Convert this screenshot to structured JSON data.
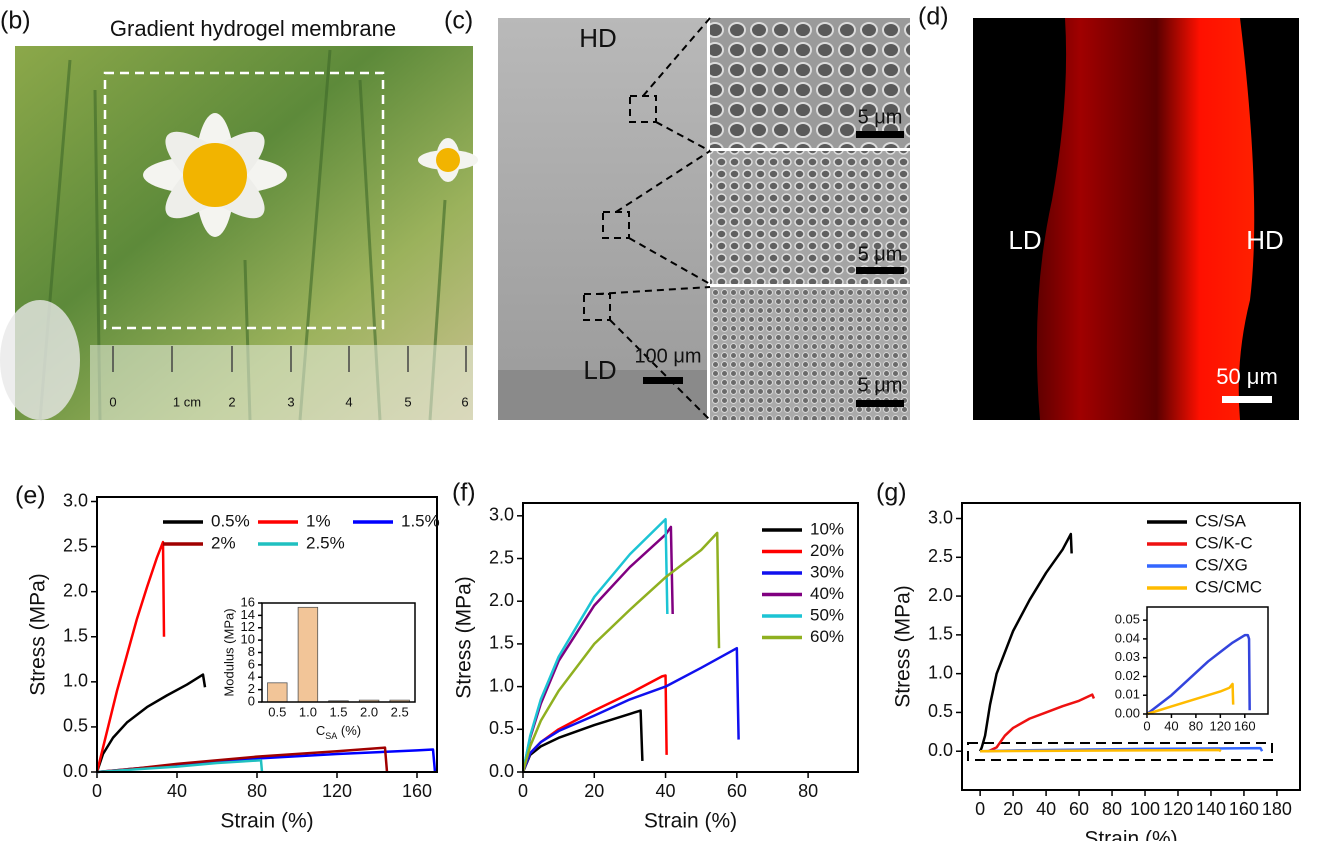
{
  "panels": [
    {
      "label": "(b)",
      "title": "Gradient hydrogel membrane",
      "ruler": [
        "0",
        "1 cm",
        "2",
        "3",
        "4",
        "5",
        "6"
      ]
    },
    {
      "label": "(c)",
      "texts": [
        "HD",
        "LD",
        "100 μm",
        "5 μm",
        "5 μm",
        "5 μm"
      ]
    },
    {
      "label": "(d)",
      "texts": [
        "LD",
        "HD",
        "50 μm"
      ]
    }
  ],
  "chart_data": [
    {
      "type": "line",
      "label": "(e)",
      "xlabel": "Strain (%)",
      "ylabel": "Stress (MPa)",
      "xlim": [
        0,
        170
      ],
      "xticks": [
        0,
        40,
        80,
        120,
        160
      ],
      "ylim": [
        0,
        3.05
      ],
      "yticks": [
        {
          "value": 0,
          "label": "0.0"
        },
        0.5,
        {
          "value": 1,
          "label": "1.0"
        },
        1.5,
        {
          "value": 2,
          "label": "2.0"
        },
        2.5,
        {
          "value": 3,
          "label": "3.0"
        }
      ],
      "legend": "top",
      "series": [
        {
          "name": "0.5%",
          "color": "#000000",
          "x": [
            0,
            3,
            8,
            15,
            25,
            35,
            45,
            53,
            54
          ],
          "values": [
            0,
            0.2,
            0.38,
            0.55,
            0.72,
            0.85,
            0.97,
            1.08,
            0.94
          ]
        },
        {
          "name": "1%",
          "color": "#ff0000",
          "x": [
            0,
            5,
            10,
            15,
            20,
            25,
            30,
            33,
            33.5
          ],
          "values": [
            0,
            0.45,
            0.9,
            1.3,
            1.7,
            2.05,
            2.38,
            2.55,
            1.5
          ]
        },
        {
          "name": "1.5%",
          "color": "#0000ff",
          "x": [
            0,
            20,
            40,
            80,
            120,
            160,
            168,
            169
          ],
          "values": [
            0,
            0.04,
            0.08,
            0.15,
            0.2,
            0.24,
            0.25,
            0
          ]
        },
        {
          "name": "2%",
          "color": "#a00000",
          "x": [
            0,
            20,
            40,
            80,
            120,
            144,
            145
          ],
          "values": [
            0,
            0.04,
            0.09,
            0.17,
            0.23,
            0.27,
            0
          ]
        },
        {
          "name": "2.5%",
          "color": "#20c0c0",
          "x": [
            0,
            20,
            40,
            60,
            82,
            82.5
          ],
          "values": [
            0,
            0.03,
            0.06,
            0.1,
            0.13,
            0
          ]
        }
      ],
      "inset": {
        "type": "bar",
        "xlabel": [
          "C",
          "SA",
          " (%)"
        ],
        "ylabel": "Modulus (MPa)",
        "categories": [
          "0.5",
          "1.0",
          "1.5",
          "2.0",
          "2.5"
        ],
        "values": [
          3.1,
          15.3,
          0.2,
          0.3,
          0.3
        ],
        "color": "#f2c598",
        "ylim": [
          0,
          16
        ],
        "yticks": [
          0,
          2,
          4,
          6,
          8,
          10,
          12,
          14,
          16
        ]
      }
    },
    {
      "type": "line",
      "label": "(f)",
      "xlabel": "Strain (%)",
      "ylabel": "Stress (MPa)",
      "xlim": [
        0,
        94
      ],
      "xticks": [
        0,
        20,
        40,
        60,
        80
      ],
      "ylim": [
        0,
        3.15
      ],
      "yticks": [
        {
          "value": 0,
          "label": "0.0"
        },
        0.5,
        {
          "value": 1,
          "label": "1.0"
        },
        1.5,
        {
          "value": 2,
          "label": "2.0"
        },
        2.5,
        {
          "value": 3,
          "label": "3.0"
        }
      ],
      "legend": "upper right",
      "series": [
        {
          "name": "10%",
          "color": "#000000",
          "x": [
            0,
            2,
            5,
            10,
            20,
            30,
            33,
            33.5
          ],
          "values": [
            0,
            0.2,
            0.3,
            0.4,
            0.55,
            0.68,
            0.72,
            0.13
          ]
        },
        {
          "name": "20%",
          "color": "#ff0000",
          "x": [
            0,
            2,
            5,
            10,
            20,
            30,
            39,
            40,
            40.3
          ],
          "values": [
            0,
            0.22,
            0.35,
            0.5,
            0.72,
            0.92,
            1.12,
            1.13,
            0.2
          ]
        },
        {
          "name": "30%",
          "color": "#1010ee",
          "x": [
            0,
            2,
            5,
            10,
            20,
            30,
            40,
            50,
            60,
            60.5
          ],
          "values": [
            0,
            0.22,
            0.35,
            0.48,
            0.66,
            0.85,
            1.0,
            1.22,
            1.45,
            0.38
          ]
        },
        {
          "name": "40%",
          "color": "#800080",
          "x": [
            0,
            2,
            5,
            10,
            20,
            30,
            40,
            41.5,
            42
          ],
          "values": [
            0,
            0.4,
            0.8,
            1.3,
            1.95,
            2.4,
            2.78,
            2.87,
            1.85
          ]
        },
        {
          "name": "50%",
          "color": "#1cc4d4",
          "x": [
            0,
            2,
            5,
            10,
            20,
            30,
            40,
            40.5
          ],
          "values": [
            0,
            0.42,
            0.85,
            1.35,
            2.05,
            2.55,
            2.96,
            1.85
          ]
        },
        {
          "name": "60%",
          "color": "#8fb020",
          "x": [
            0,
            2,
            5,
            10,
            20,
            30,
            40,
            50,
            54.5,
            55
          ],
          "values": [
            0,
            0.3,
            0.6,
            0.95,
            1.5,
            1.9,
            2.28,
            2.6,
            2.8,
            1.45
          ]
        }
      ]
    },
    {
      "type": "line",
      "label": "(g)",
      "xlabel": "Strain (%)",
      "ylabel": "Stress (MPa)",
      "xlim": [
        -11,
        194
      ],
      "xticks": [
        0,
        20,
        40,
        60,
        80,
        100,
        120,
        140,
        160,
        180
      ],
      "ylim": [
        -0.5,
        3.2
      ],
      "yticks": [
        {
          "value": 0,
          "label": "0.0"
        },
        0.5,
        {
          "value": 1,
          "label": "1.0"
        },
        1.5,
        {
          "value": 2,
          "label": "2.0"
        },
        2.5,
        {
          "value": 3,
          "label": "3.0"
        }
      ],
      "legend": "upper right",
      "series": [
        {
          "name": "CS/SA",
          "color": "#000000",
          "x": [
            0,
            1,
            3,
            6,
            10,
            20,
            30,
            40,
            50,
            55,
            55.5
          ],
          "values": [
            0,
            0.05,
            0.2,
            0.6,
            1.0,
            1.55,
            1.95,
            2.3,
            2.6,
            2.8,
            2.55
          ]
        },
        {
          "name": "CS/K-C",
          "color": "#ee1111",
          "x": [
            0,
            5,
            10,
            15,
            20,
            30,
            40,
            50,
            60,
            68,
            69
          ],
          "values": [
            0,
            0,
            0.05,
            0.2,
            0.3,
            0.42,
            0.5,
            0.58,
            0.65,
            0.73,
            0.68
          ]
        },
        {
          "name": "CS/XG",
          "color": "#3366ff",
          "x": [
            0,
            20,
            60,
            100,
            140,
            170,
            171
          ],
          "values": [
            0,
            0.01,
            0.02,
            0.03,
            0.035,
            0.04,
            0
          ]
        },
        {
          "name": "CS/CMC",
          "color": "#ffbb00",
          "x": [
            0,
            40,
            80,
            120,
            145,
            146
          ],
          "values": [
            0,
            0.005,
            0.01,
            0.013,
            0.015,
            0
          ]
        }
      ],
      "inset": {
        "type": "line",
        "xlim": [
          0,
          198
        ],
        "xticks": [
          0,
          40,
          80,
          120,
          160
        ],
        "ylim": [
          0,
          0.057
        ],
        "yticks": [
          {
            "value": 0,
            "label": "0.00"
          },
          0.01,
          0.02,
          0.03,
          0.04,
          0.05
        ],
        "series": [
          {
            "color": "#3344dd",
            "x": [
              0,
              20,
              40,
              60,
              80,
              100,
              120,
              140,
              160,
              165,
              167,
              168
            ],
            "values": [
              0,
              0.005,
              0.01,
              0.016,
              0.022,
              0.028,
              0.033,
              0.038,
              0.042,
              0.042,
              0.04,
              0.002
            ]
          },
          {
            "color": "#ffbb00",
            "x": [
              0,
              20,
              40,
              60,
              80,
              100,
              120,
              135,
              140,
              141
            ],
            "values": [
              0,
              0.002,
              0.004,
              0.006,
              0.008,
              0.01,
              0.012,
              0.014,
              0.016,
              0.005
            ]
          }
        ]
      }
    }
  ]
}
